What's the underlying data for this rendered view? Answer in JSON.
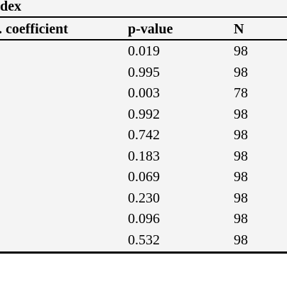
{
  "table": {
    "top_label": "dex",
    "headers": [
      ". coefficient",
      "p-value",
      "N"
    ],
    "rows": [
      {
        "p_value": "0.019",
        "n": "98"
      },
      {
        "p_value": "0.995",
        "n": "98"
      },
      {
        "p_value": "0.003",
        "n": "78"
      },
      {
        "p_value": "0.992",
        "n": "98"
      },
      {
        "p_value": "0.742",
        "n": "98"
      },
      {
        "p_value": "0.183",
        "n": "98"
      },
      {
        "p_value": "0.069",
        "n": "98"
      },
      {
        "p_value": "0.230",
        "n": "98"
      },
      {
        "p_value": "0.096",
        "n": "98"
      },
      {
        "p_value": "0.532",
        "n": "98"
      }
    ]
  }
}
